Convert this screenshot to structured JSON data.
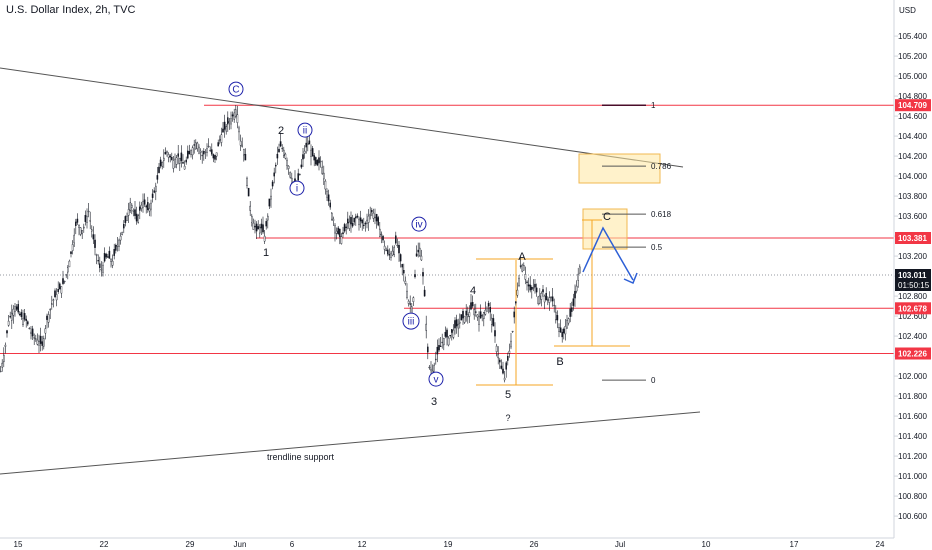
{
  "header": {
    "title": "U.S. Dollar Index, 2h, TVC",
    "currency": "USD"
  },
  "chart_data": {
    "type": "candlestick",
    "title": "U.S. Dollar Index, 2h, TVC",
    "y_axis": {
      "ticks": [
        "100.600",
        "100.800",
        "101.000",
        "101.200",
        "101.400",
        "101.600",
        "101.800",
        "102.000",
        "102.200",
        "102.400",
        "102.600",
        "102.800",
        "103.000",
        "103.200",
        "103.400",
        "103.600",
        "103.800",
        "104.000",
        "104.200",
        "104.400",
        "104.600",
        "104.800",
        "105.000",
        "105.200",
        "105.400"
      ],
      "range": [
        100.5,
        105.6
      ]
    },
    "x_axis": {
      "ticks": [
        "15",
        "22",
        "29",
        "Jun",
        "6",
        "12",
        "19",
        "26",
        "Jul",
        "10",
        "17",
        "24"
      ]
    },
    "price_path": [
      [
        0,
        102.05
      ],
      [
        4,
        102.25
      ],
      [
        8,
        102.55
      ],
      [
        14,
        102.7
      ],
      [
        20,
        102.6
      ],
      [
        26,
        102.55
      ],
      [
        32,
        102.4
      ],
      [
        38,
        102.35
      ],
      [
        42,
        102.3
      ],
      [
        46,
        102.55
      ],
      [
        52,
        102.75
      ],
      [
        58,
        102.85
      ],
      [
        64,
        102.95
      ],
      [
        70,
        103.2
      ],
      [
        76,
        103.55
      ],
      [
        82,
        103.45
      ],
      [
        88,
        103.65
      ],
      [
        94,
        103.3
      ],
      [
        100,
        103.05
      ],
      [
        106,
        103.2
      ],
      [
        112,
        103.15
      ],
      [
        118,
        103.35
      ],
      [
        124,
        103.5
      ],
      [
        130,
        103.75
      ],
      [
        136,
        103.55
      ],
      [
        142,
        103.75
      ],
      [
        148,
        103.65
      ],
      [
        154,
        103.85
      ],
      [
        160,
        104.1
      ],
      [
        166,
        104.25
      ],
      [
        172,
        104.15
      ],
      [
        178,
        104.2
      ],
      [
        184,
        104.1
      ],
      [
        190,
        104.25
      ],
      [
        196,
        104.35
      ],
      [
        202,
        104.2
      ],
      [
        208,
        104.3
      ],
      [
        214,
        104.15
      ],
      [
        220,
        104.4
      ],
      [
        226,
        104.5
      ],
      [
        232,
        104.6
      ],
      [
        236,
        104.68
      ],
      [
        240,
        104.35
      ],
      [
        244,
        104.25
      ],
      [
        248,
        103.8
      ],
      [
        252,
        103.55
      ],
      [
        256,
        103.45
      ],
      [
        260,
        103.5
      ],
      [
        264,
        103.4
      ],
      [
        268,
        103.65
      ],
      [
        272,
        103.9
      ],
      [
        276,
        104.15
      ],
      [
        280,
        104.3
      ],
      [
        284,
        104.25
      ],
      [
        288,
        104.1
      ],
      [
        292,
        103.95
      ],
      [
        296,
        103.9
      ],
      [
        300,
        104.05
      ],
      [
        304,
        104.25
      ],
      [
        308,
        104.35
      ],
      [
        312,
        104.2
      ],
      [
        316,
        104.1
      ],
      [
        320,
        104.15
      ],
      [
        324,
        104.0
      ],
      [
        328,
        103.75
      ],
      [
        332,
        103.6
      ],
      [
        336,
        103.45
      ],
      [
        340,
        103.38
      ],
      [
        344,
        103.45
      ],
      [
        348,
        103.55
      ],
      [
        352,
        103.5
      ],
      [
        356,
        103.6
      ],
      [
        360,
        103.55
      ],
      [
        364,
        103.5
      ],
      [
        368,
        103.6
      ],
      [
        372,
        103.65
      ],
      [
        376,
        103.55
      ],
      [
        380,
        103.45
      ],
      [
        384,
        103.3
      ],
      [
        388,
        103.2
      ],
      [
        392,
        103.25
      ],
      [
        396,
        103.35
      ],
      [
        400,
        103.15
      ],
      [
        404,
        103.0
      ],
      [
        408,
        102.75
      ],
      [
        412,
        102.68
      ],
      [
        416,
        103.2
      ],
      [
        420,
        103.3
      ],
      [
        424,
        102.8
      ],
      [
        428,
        102.1
      ],
      [
        432,
        102.05
      ],
      [
        436,
        102.2
      ],
      [
        440,
        102.3
      ],
      [
        444,
        102.4
      ],
      [
        448,
        102.38
      ],
      [
        452,
        102.45
      ],
      [
        456,
        102.5
      ],
      [
        460,
        102.55
      ],
      [
        464,
        102.6
      ],
      [
        468,
        102.62
      ],
      [
        472,
        102.7
      ],
      [
        476,
        102.62
      ],
      [
        480,
        102.58
      ],
      [
        484,
        102.65
      ],
      [
        488,
        102.7
      ],
      [
        492,
        102.55
      ],
      [
        496,
        102.3
      ],
      [
        500,
        102.1
      ],
      [
        504,
        101.98
      ],
      [
        508,
        102.2
      ],
      [
        512,
        102.45
      ],
      [
        516,
        102.8
      ],
      [
        520,
        103.1
      ],
      [
        523,
        103.12
      ],
      [
        526,
        102.95
      ],
      [
        530,
        102.85
      ],
      [
        534,
        102.9
      ],
      [
        538,
        102.78
      ],
      [
        542,
        102.85
      ],
      [
        546,
        102.75
      ],
      [
        550,
        102.8
      ],
      [
        554,
        102.7
      ],
      [
        558,
        102.5
      ],
      [
        562,
        102.38
      ],
      [
        566,
        102.55
      ],
      [
        570,
        102.6
      ],
      [
        574,
        102.75
      ],
      [
        578,
        103.05
      ],
      [
        580,
        103.12
      ]
    ],
    "horizontal_levels": [
      {
        "value": 104.709,
        "label": "104.709",
        "color": "#f23645"
      },
      {
        "value": 103.381,
        "label": "103.381",
        "color": "#f23645"
      },
      {
        "value": 102.678,
        "label": "102.678",
        "color": "#f23645"
      },
      {
        "value": 102.226,
        "label": "102.226",
        "color": "#f23645"
      }
    ],
    "current_price": {
      "value": 103.011,
      "label": "103.011",
      "countdown": "01:50:15"
    },
    "fibonacci_levels": [
      {
        "ratio": "1",
        "value": 104.709
      },
      {
        "ratio": "0.786",
        "value": 104.1
      },
      {
        "ratio": "0.618",
        "value": 103.62
      },
      {
        "ratio": "0.5",
        "value": 103.29
      },
      {
        "ratio": "0",
        "value": 101.96
      }
    ],
    "wave_labels": [
      {
        "text": "C",
        "circled": true,
        "at": [
          236,
          104.87
        ]
      },
      {
        "text": "2",
        "circled": false,
        "at": [
          281,
          104.46
        ]
      },
      {
        "text": "ii",
        "circled": true,
        "at": [
          305,
          104.46
        ]
      },
      {
        "text": "i",
        "circled": true,
        "at": [
          297,
          103.88
        ]
      },
      {
        "text": "1",
        "circled": false,
        "at": [
          266,
          103.24
        ]
      },
      {
        "text": "iv",
        "circled": true,
        "at": [
          419,
          103.52
        ]
      },
      {
        "text": "iii",
        "circled": true,
        "at": [
          411,
          102.55
        ]
      },
      {
        "text": "4",
        "circled": false,
        "at": [
          473,
          102.86
        ]
      },
      {
        "text": "v",
        "circled": true,
        "at": [
          436,
          101.97
        ]
      },
      {
        "text": "3",
        "circled": false,
        "at": [
          434,
          101.75
        ]
      },
      {
        "text": "5",
        "circled": false,
        "at": [
          508,
          101.82
        ]
      },
      {
        "text": "?",
        "circled": false,
        "at": [
          508,
          101.59
        ]
      },
      {
        "text": "A",
        "circled": false,
        "at": [
          522,
          103.2
        ]
      },
      {
        "text": "B",
        "circled": false,
        "at": [
          560,
          102.15
        ]
      },
      {
        "text": "C",
        "circled": false,
        "at": [
          607,
          103.6
        ]
      }
    ],
    "annotations": [
      "trendline support"
    ]
  }
}
